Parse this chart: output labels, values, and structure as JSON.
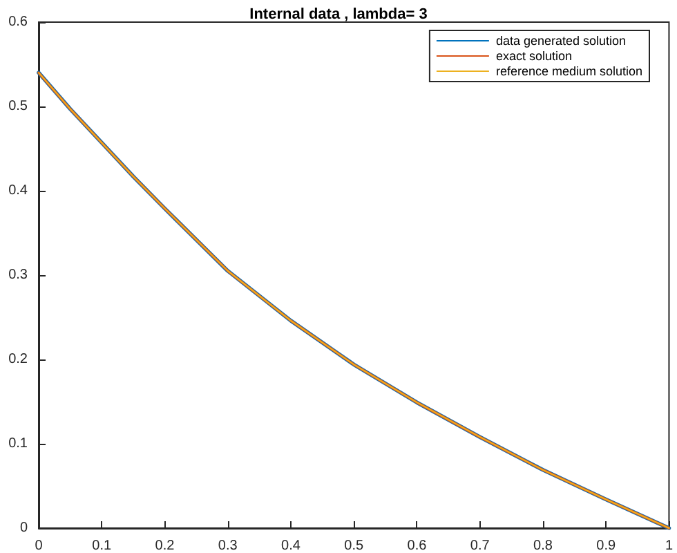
{
  "chart_data": {
    "type": "line",
    "title": "Internal data , lambda= 3",
    "x": [
      0,
      0.05,
      0.1,
      0.15,
      0.2,
      0.3,
      0.4,
      0.5,
      0.6,
      0.7,
      0.8,
      0.9,
      1
    ],
    "series": [
      {
        "name": "data generated solution",
        "color": "#0072bd",
        "values": [
          0.54,
          0.497,
          0.457,
          0.417,
          0.379,
          0.305,
          0.246,
          0.194,
          0.149,
          0.108,
          0.069,
          0.034,
          0
        ]
      },
      {
        "name": "exact solution",
        "color": "#d95319",
        "values": [
          0.54,
          0.497,
          0.457,
          0.417,
          0.379,
          0.305,
          0.246,
          0.194,
          0.149,
          0.108,
          0.069,
          0.034,
          0
        ]
      },
      {
        "name": "reference medium solution",
        "color": "#edb120",
        "values": [
          0.54,
          0.497,
          0.457,
          0.417,
          0.379,
          0.305,
          0.246,
          0.194,
          0.149,
          0.108,
          0.069,
          0.034,
          0
        ]
      }
    ],
    "xlim": [
      0,
      1
    ],
    "xticks": [
      0,
      0.1,
      0.2,
      0.3,
      0.4,
      0.5,
      0.6,
      0.7,
      0.8,
      0.9,
      1
    ],
    "ylim": [
      0,
      0.6
    ],
    "yticks": [
      0,
      0.1,
      0.2,
      0.3,
      0.4,
      0.5,
      0.6
    ],
    "grid": false,
    "legend": "top right",
    "marker": "none",
    "line_style": "solid"
  }
}
